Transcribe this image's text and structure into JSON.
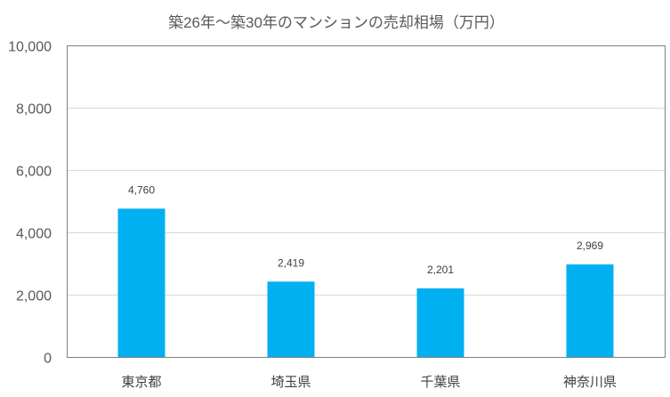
{
  "chart_data": {
    "type": "bar",
    "title": "築26年～築30年のマンションの売却相場（万円）",
    "categories": [
      "東京都",
      "埼玉県",
      "千葉県",
      "神奈川県"
    ],
    "values": [
      4760,
      2419,
      2201,
      2969
    ],
    "data_labels": [
      "4,760",
      "2,419",
      "2,201",
      "2,969"
    ],
    "yticks": [
      0,
      2000,
      4000,
      6000,
      8000,
      10000
    ],
    "ytick_labels": [
      "0",
      "2,000",
      "4,000",
      "6,000",
      "8,000",
      "10,000"
    ],
    "ylim": [
      0,
      10000
    ],
    "xlabel": "",
    "ylabel": "",
    "grid": true,
    "legend": "none",
    "bar_color": "#00b0f0"
  }
}
